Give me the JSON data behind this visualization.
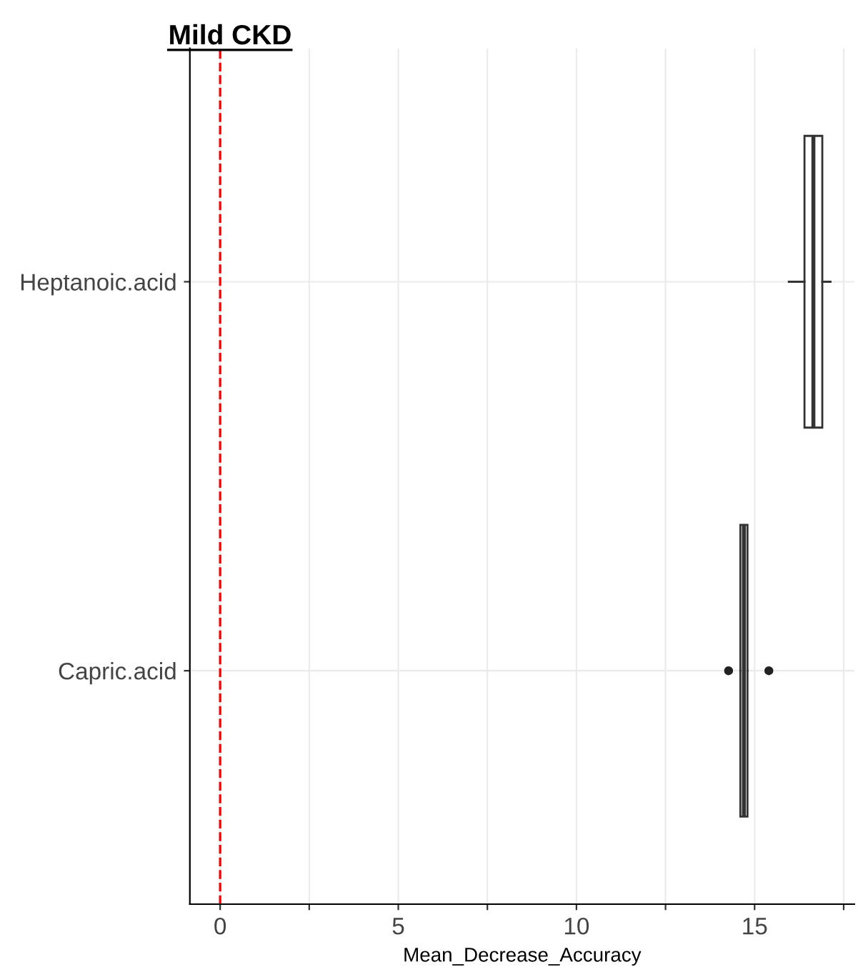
{
  "chart_data": {
    "type": "box",
    "title": "Mild CKD",
    "xlabel": "Mean_Decrease_Accuracy",
    "orientation": "horizontal",
    "categories": [
      "Heptanoic.acid",
      "Capric.acid"
    ],
    "boxes": [
      {
        "low": 15.96,
        "q1": 16.4,
        "median": 16.65,
        "q3": 16.9,
        "high": 17.13
      },
      {
        "low": 14.6,
        "q1": 14.6,
        "median": 14.7,
        "q3": 14.8,
        "high": 14.8,
        "outliers": [
          14.27,
          15.4
        ]
      }
    ],
    "xlim": [
      -0.85,
      17.8
    ],
    "xticks": [
      0,
      {
        "value": 2.5,
        "label": null
      },
      5,
      {
        "value": 7.5,
        "label": null
      },
      10,
      {
        "value": 12.5,
        "label": null
      },
      15,
      {
        "value": 17.5,
        "label": null
      }
    ],
    "ref_lines": [
      {
        "axis": "x",
        "value": 0,
        "color": "#ff0000",
        "line_style": "dashed"
      }
    ],
    "grid": true
  }
}
